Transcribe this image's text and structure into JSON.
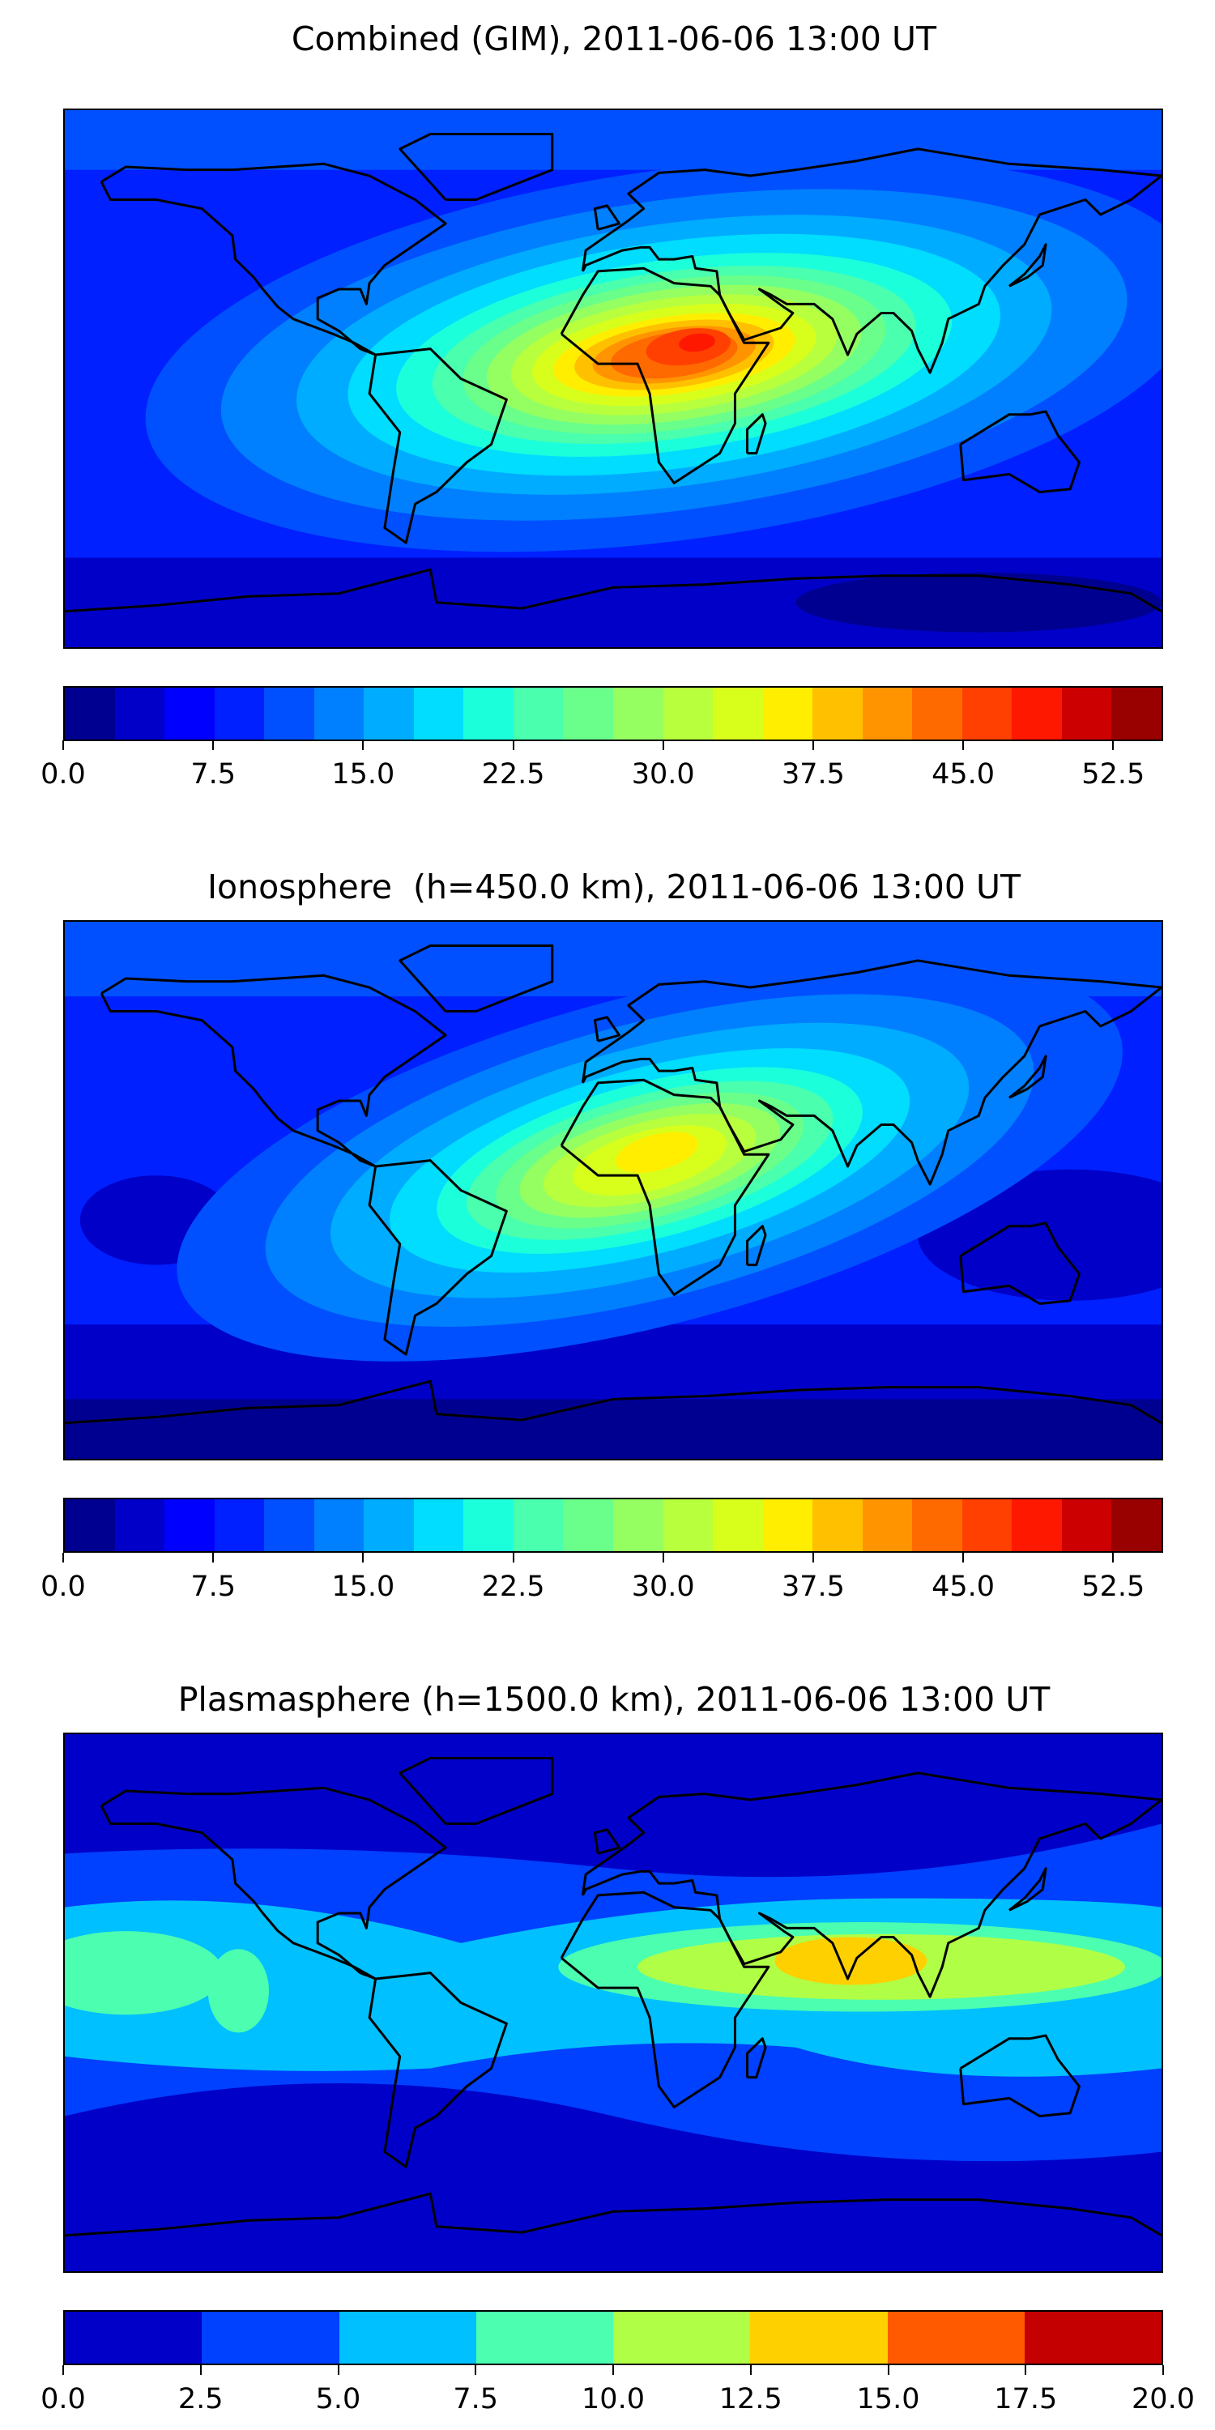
{
  "chart_data": [
    {
      "type": "heatmap",
      "title": "Combined (GIM), 2011-06-06 13:00 UT",
      "levels_min": 0.0,
      "levels_max": 55.0,
      "level_step": 2.5,
      "colorbar_ticks": [
        "0.0",
        "7.5",
        "15.0",
        "22.5",
        "30.0",
        "37.5",
        "45.0",
        "52.5"
      ],
      "tick_values": [
        0,
        7.5,
        15,
        22.5,
        30,
        37.5,
        45,
        52.5
      ],
      "colors": [
        "#000090",
        "#0000c8",
        "#0000ff",
        "#0020ff",
        "#0050ff",
        "#0080ff",
        "#00acff",
        "#00ddff",
        "#1cffdb",
        "#4affad",
        "#6aff8a",
        "#95ff62",
        "#b8ff3e",
        "#d8ff1c",
        "#ffee00",
        "#ffc000",
        "#ff9400",
        "#ff6a00",
        "#ff4000",
        "#ff1800",
        "#cc0000",
        "#990000"
      ],
      "peak_region": "North Africa / Arabia",
      "peak_value_approx": 50
    },
    {
      "type": "heatmap",
      "title": "Ionosphere  (h=450.0 km), 2011-06-06 13:00 UT",
      "levels_min": 0.0,
      "levels_max": 55.0,
      "level_step": 2.5,
      "colorbar_ticks": [
        "0.0",
        "7.5",
        "15.0",
        "22.5",
        "30.0",
        "37.5",
        "45.0",
        "52.5"
      ],
      "tick_values": [
        0,
        7.5,
        15,
        22.5,
        30,
        37.5,
        45,
        52.5
      ],
      "colors": [
        "#000090",
        "#0000c8",
        "#0000ff",
        "#0020ff",
        "#0050ff",
        "#0080ff",
        "#00acff",
        "#00ddff",
        "#1cffdb",
        "#4affad",
        "#6aff8a",
        "#95ff62",
        "#b8ff3e",
        "#d8ff1c",
        "#ffee00",
        "#ffc000",
        "#ff9400",
        "#ff6a00",
        "#ff4000",
        "#ff1800",
        "#cc0000",
        "#990000"
      ],
      "peak_region": "North Africa",
      "peak_value_approx": 36
    },
    {
      "type": "heatmap",
      "title": "Plasmasphere (h=1500.0 km), 2011-06-06 13:00 UT",
      "levels_min": 0.0,
      "levels_max": 20.0,
      "level_step": 2.5,
      "colorbar_ticks": [
        "0.0",
        "2.5",
        "5.0",
        "7.5",
        "10.0",
        "12.5",
        "15.0",
        "17.5",
        "20.0"
      ],
      "tick_values": [
        0,
        2.5,
        5,
        7.5,
        10,
        12.5,
        15,
        17.5,
        20
      ],
      "colors": [
        "#0000c8",
        "#0040ff",
        "#00c0ff",
        "#4cffb0",
        "#b0ff46",
        "#ffd000",
        "#ff5a00",
        "#c40000"
      ],
      "peak_region": "India / Arabian Sea",
      "peak_value_approx": 14
    }
  ]
}
